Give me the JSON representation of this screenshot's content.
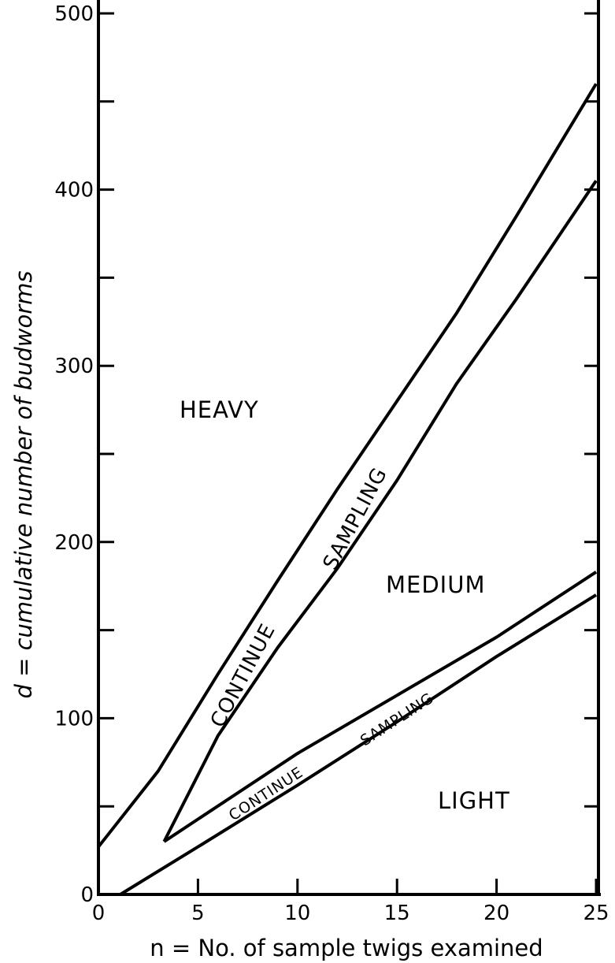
{
  "chart_data": {
    "type": "line",
    "xlabel": "n = No. of sample twigs examined",
    "ylabel": "d = cumulative number of budworms",
    "xlim": [
      0,
      25
    ],
    "ylim": [
      0,
      500
    ],
    "x_ticks": [
      0,
      5,
      10,
      15,
      20,
      25
    ],
    "y_tick_labels": [
      0,
      100,
      200,
      300,
      400,
      500
    ],
    "y_minor_ticks": [
      50,
      150,
      250,
      350,
      450
    ],
    "grid": false,
    "series": [
      {
        "x": [
          0,
          3,
          6,
          9,
          12,
          15,
          18,
          21,
          25
        ],
        "y": [
          27,
          70,
          125,
          178,
          230,
          280,
          330,
          385,
          460
        ]
      },
      {
        "x": [
          3.3,
          6,
          9,
          12,
          15,
          18,
          21,
          25
        ],
        "y": [
          30,
          90,
          140,
          185,
          235,
          290,
          338,
          405
        ]
      },
      {
        "x": [
          3.3,
          10,
          15,
          20,
          25
        ],
        "y": [
          30,
          80,
          113,
          146,
          183
        ]
      },
      {
        "x": [
          1.1,
          5,
          10,
          15,
          20,
          25
        ],
        "y": [
          0,
          27,
          62,
          98,
          135,
          170
        ]
      }
    ],
    "region_labels": [
      "HEAVY",
      "MEDIUM",
      "LIGHT"
    ],
    "band_labels": [
      "CONTINUE",
      "SAMPLING",
      "CONTINUE",
      "SAMPLING"
    ]
  }
}
